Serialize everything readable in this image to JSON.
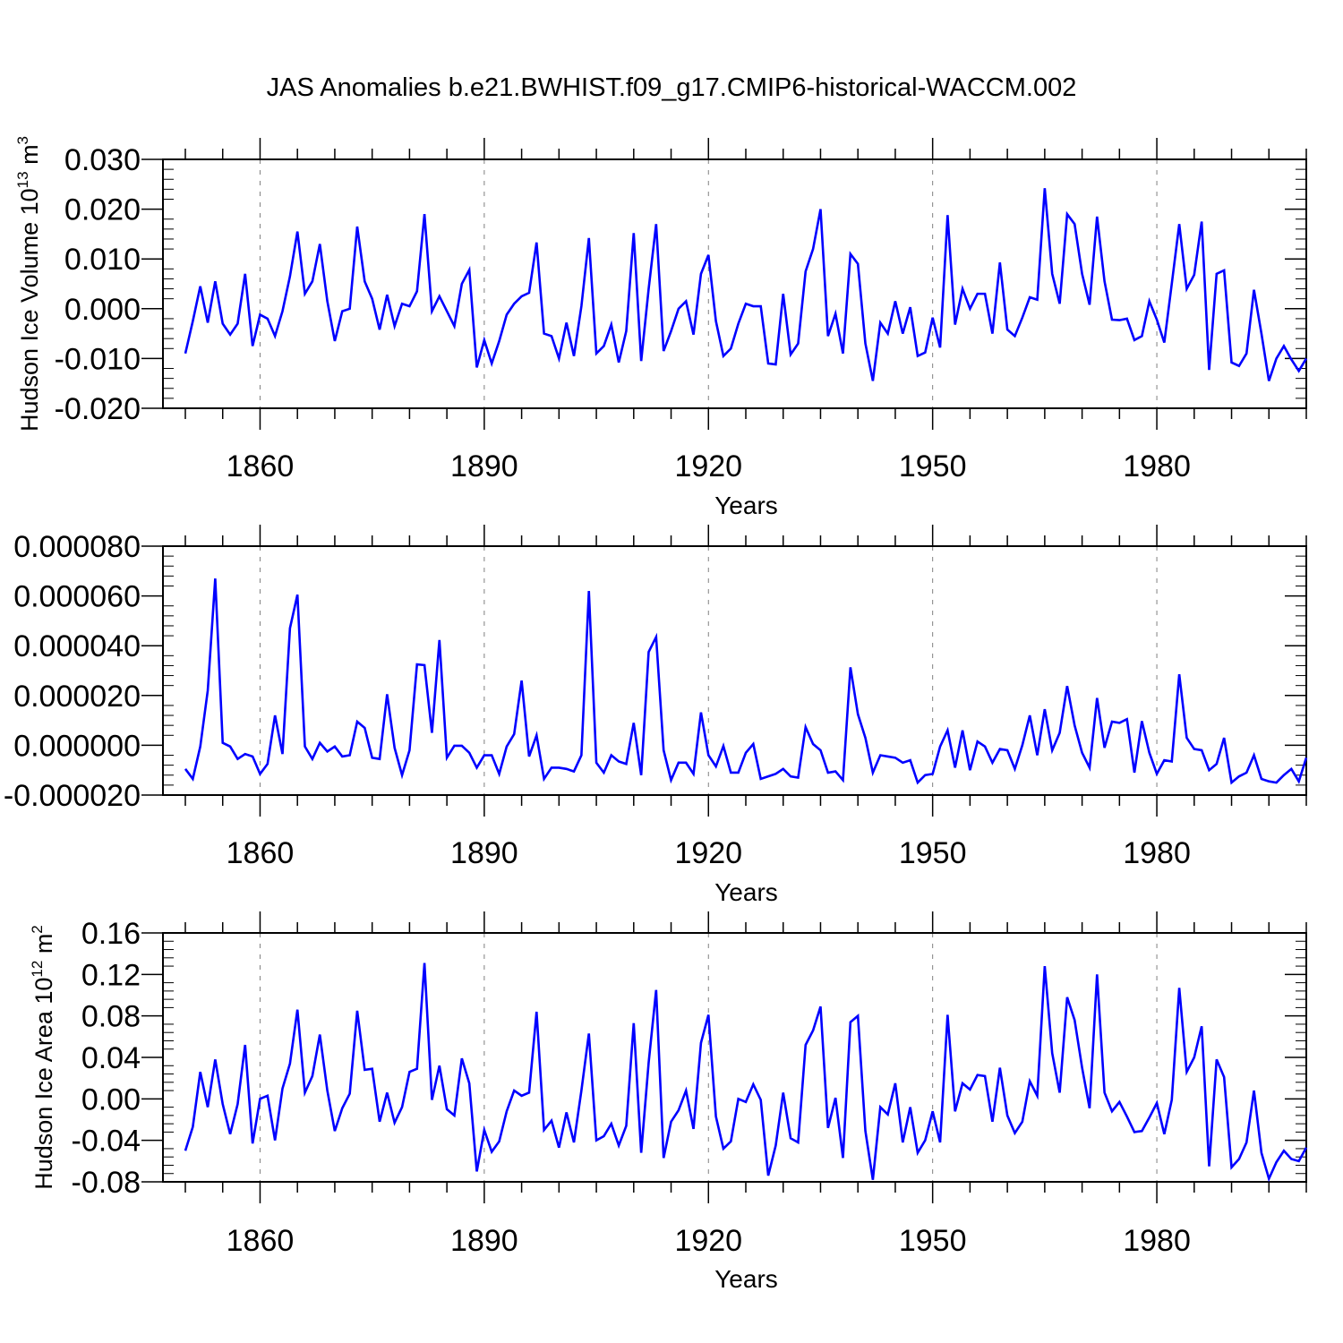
{
  "title": "JAS Anomalies b.e21.BWHIST.f09_g17.CMIP6-historical-WACCM.002",
  "colors": {
    "series": "#0000ff",
    "axes": "#000000",
    "grid": "#808080"
  },
  "chart_data": [
    {
      "type": "line",
      "title": "JAS Anomalies b.e21.BWHIST.f09_g17.CMIP6-historical-WACCM.002",
      "xlabel": "Years",
      "ylabel_text": "Hudson Ice Volume 10",
      "ylabel_sup": "13",
      "ylabel_unit": " m",
      "ylabel_unit_sup": "3",
      "xlim": [
        1850,
        2000
      ],
      "ylim": [
        -0.02,
        0.03
      ],
      "xticks": [
        1860,
        1890,
        1920,
        1950,
        1980
      ],
      "xtick_labels": [
        "1860",
        "1890",
        "1920",
        "1950",
        "1980"
      ],
      "yticks": [
        -0.02,
        -0.01,
        0.0,
        0.01,
        0.02,
        0.03
      ],
      "ytick_labels": [
        "-0.020",
        "-0.010",
        "0.000",
        "0.010",
        "0.020",
        "0.030"
      ],
      "grid": "vertical dashed at major x ticks",
      "x_start": 1850,
      "values": [
        -0.009,
        -0.0025,
        0.0045,
        -0.0028,
        0.0055,
        -0.003,
        -0.0052,
        -0.003,
        0.007,
        -0.0075,
        -0.0012,
        -0.002,
        -0.0055,
        -0.0005,
        0.0065,
        0.0155,
        0.003,
        0.0055,
        0.013,
        0.0015,
        -0.0065,
        -0.0005,
        0.0,
        0.0165,
        0.0055,
        0.002,
        -0.0042,
        0.0028,
        -0.0035,
        0.001,
        0.0005,
        0.0035,
        0.019,
        -0.0005,
        0.0025,
        -0.0005,
        -0.0035,
        0.005,
        0.0078,
        -0.0118,
        -0.0063,
        -0.011,
        -0.0065,
        -0.0012,
        0.001,
        0.0025,
        0.0032,
        0.0133,
        -0.005,
        -0.0055,
        -0.01,
        -0.0028,
        -0.0095,
        0.0005,
        0.0142,
        -0.009,
        -0.0075,
        -0.0032,
        -0.0108,
        -0.0045,
        0.0152,
        -0.0105,
        0.004,
        0.017,
        -0.0085,
        -0.0045,
        0.0,
        0.0015,
        -0.0052,
        0.007,
        0.0108,
        -0.0025,
        -0.0095,
        -0.008,
        -0.003,
        0.001,
        0.0005,
        0.0005,
        -0.011,
        -0.0112,
        0.003,
        -0.0092,
        -0.007,
        0.0075,
        0.012,
        0.02,
        -0.0055,
        -0.001,
        -0.009,
        0.011,
        0.009,
        -0.007,
        -0.0145,
        -0.0028,
        -0.005,
        0.0015,
        -0.005,
        0.0003,
        -0.0095,
        -0.0088,
        -0.0018,
        -0.0078,
        0.0188,
        -0.0032,
        0.004,
        0.0,
        0.003,
        0.003,
        -0.005,
        0.0093,
        -0.0042,
        -0.0055,
        -0.0018,
        0.0023,
        0.0018,
        0.0242,
        0.007,
        0.001,
        0.019,
        0.017,
        0.007,
        0.0008,
        0.0185,
        0.0055,
        -0.0022,
        -0.0023,
        -0.002,
        -0.0063,
        -0.0055,
        0.0015,
        -0.0022,
        -0.0068,
        0.005,
        0.017,
        0.004,
        0.0068,
        0.0175,
        -0.0123,
        0.007,
        0.0077,
        -0.0108,
        -0.0115,
        -0.009,
        0.0038,
        -0.005,
        -0.0145,
        -0.01,
        -0.0075,
        -0.0102,
        -0.0125,
        -0.01
      ]
    },
    {
      "type": "line",
      "xlabel": "Years",
      "xlim": [
        1850,
        2000
      ],
      "ylim": [
        -2e-05,
        8e-05
      ],
      "xticks": [
        1860,
        1890,
        1920,
        1950,
        1980
      ],
      "xtick_labels": [
        "1860",
        "1890",
        "1920",
        "1950",
        "1980"
      ],
      "yticks": [
        -2e-05,
        0.0,
        2e-05,
        4e-05,
        6e-05,
        8e-05
      ],
      "ytick_labels": [
        "-0.000020",
        "0.000000",
        "0.000020",
        "0.000040",
        "0.000060",
        "0.000080"
      ],
      "grid": "vertical dashed at major x ticks",
      "x_start": 1850,
      "values": [
        -9.5e-06,
        -1.35e-05,
        -5e-07,
        2.2e-05,
        6.7e-05,
        1e-06,
        -5e-07,
        -5.5e-06,
        -3.5e-06,
        -4.5e-06,
        -1.15e-05,
        -7.5e-06,
        1.2e-05,
        -3.5e-06,
        4.7e-05,
        6.05e-05,
        -5e-07,
        -5.5e-06,
        1e-06,
        -2.5e-06,
        -5e-07,
        -4.5e-06,
        -4e-06,
        9.5e-06,
        7e-06,
        -5e-06,
        -5.5e-06,
        2.05e-05,
        -1e-06,
        -1.2e-05,
        -2e-06,
        3.25e-05,
        3.22e-05,
        5e-06,
        4.23e-05,
        -5e-06,
        -2e-07,
        -2e-07,
        -3e-06,
        -9e-06,
        -4e-06,
        -4e-06,
        -1.15e-05,
        -5e-07,
        4.5e-06,
        2.6e-05,
        -4.5e-06,
        4e-06,
        -1.35e-05,
        -9e-06,
        -9e-06,
        -9.5e-06,
        -1.05e-05,
        -4e-06,
        6.2e-05,
        -7e-06,
        -1.1e-05,
        -4e-06,
        -6.5e-06,
        -7.5e-06,
        9e-06,
        -1.2e-05,
        3.75e-05,
        4.35e-05,
        -2e-06,
        -1.4e-05,
        -7e-06,
        -7e-06,
        -1.15e-05,
        1.32e-05,
        -4e-06,
        -8.5e-06,
        -3e-07,
        -1.1e-05,
        -1.1e-05,
        -3e-06,
        5e-07,
        -1.35e-05,
        -1.25e-05,
        -1.15e-05,
        -9.5e-06,
        -1.25e-05,
        -1.3e-05,
        7.3e-06,
        5e-07,
        -2e-06,
        -1.1e-05,
        -1.05e-05,
        -1.4e-05,
        3.13e-05,
        1.25e-05,
        3e-06,
        -1.1e-05,
        -4e-06,
        -4.5e-06,
        -5e-06,
        -7e-06,
        -6e-06,
        -1.5e-05,
        -1.2e-05,
        -1.15e-05,
        -5e-07,
        6e-06,
        -9e-06,
        6e-06,
        -1e-05,
        1.5e-06,
        -5e-07,
        -7e-06,
        -1.5e-06,
        -2e-06,
        -9.5e-06,
        0.0,
        1.2e-05,
        -4e-06,
        1.45e-05,
        -2e-06,
        5e-06,
        2.38e-05,
        8e-06,
        -3e-06,
        -9e-06,
        1.9e-05,
        -1e-06,
        9.5e-06,
        9e-06,
        1.05e-05,
        -1.1e-05,
        9.7e-06,
        -3e-06,
        -1.15e-05,
        -6e-06,
        -6.5e-06,
        2.85e-05,
        3e-06,
        -1.5e-06,
        -2e-06,
        -1e-05,
        -7.5e-06,
        3e-06,
        -1.5e-05,
        -1.25e-05,
        -1.1e-05,
        -4e-06,
        -1.35e-05,
        -1.45e-05,
        -1.5e-05,
        -1.2e-05,
        -9.5e-06,
        -1.45e-05,
        -5e-06
      ]
    },
    {
      "type": "line",
      "xlabel": "Years",
      "ylabel_text": "Hudson Ice Area 10",
      "ylabel_sup": "12",
      "ylabel_unit": " m",
      "ylabel_unit_sup": "2",
      "xlim": [
        1850,
        2000
      ],
      "ylim": [
        -0.08,
        0.16
      ],
      "xticks": [
        1860,
        1890,
        1920,
        1950,
        1980
      ],
      "xtick_labels": [
        "1860",
        "1890",
        "1920",
        "1950",
        "1980"
      ],
      "yticks": [
        -0.08,
        -0.04,
        0.0,
        0.04,
        0.08,
        0.12,
        0.16
      ],
      "ytick_labels": [
        "-0.08",
        "-0.04",
        "0.00",
        "0.04",
        "0.08",
        "0.12",
        "0.16"
      ],
      "grid": "vertical dashed at major x ticks",
      "x_start": 1850,
      "values": [
        -0.05,
        -0.027,
        0.026,
        -0.008,
        0.038,
        -0.005,
        -0.034,
        -0.005,
        0.052,
        -0.043,
        0.0,
        0.003,
        -0.04,
        0.01,
        0.034,
        0.086,
        0.006,
        0.022,
        0.062,
        0.008,
        -0.031,
        -0.009,
        0.005,
        0.085,
        0.028,
        0.029,
        -0.022,
        0.006,
        -0.023,
        -0.008,
        0.026,
        0.029,
        0.131,
        -0.001,
        0.032,
        -0.01,
        -0.016,
        0.039,
        0.015,
        -0.07,
        -0.03,
        -0.051,
        -0.041,
        -0.012,
        0.008,
        0.003,
        0.006,
        0.084,
        -0.03,
        -0.021,
        -0.047,
        -0.013,
        -0.042,
        0.008,
        0.063,
        -0.04,
        -0.036,
        -0.024,
        -0.045,
        -0.026,
        0.073,
        -0.052,
        0.035,
        0.105,
        -0.057,
        -0.022,
        -0.011,
        0.008,
        -0.029,
        0.054,
        0.081,
        -0.017,
        -0.048,
        -0.041,
        0.0,
        -0.003,
        0.014,
        -0.001,
        -0.074,
        -0.045,
        0.006,
        -0.038,
        -0.042,
        0.052,
        0.066,
        0.089,
        -0.028,
        0.001,
        -0.057,
        0.074,
        0.08,
        -0.031,
        -0.078,
        -0.008,
        -0.015,
        0.015,
        -0.042,
        -0.008,
        -0.052,
        -0.04,
        -0.012,
        -0.042,
        0.081,
        -0.012,
        0.015,
        0.009,
        0.023,
        0.022,
        -0.022,
        0.03,
        -0.016,
        -0.033,
        -0.022,
        0.017,
        0.003,
        0.128,
        0.044,
        0.006,
        0.098,
        0.076,
        0.03,
        -0.009,
        0.12,
        0.006,
        -0.012,
        -0.003,
        -0.017,
        -0.032,
        -0.031,
        -0.018,
        -0.004,
        -0.034,
        -0.001,
        0.107,
        0.026,
        0.04,
        0.07,
        -0.065,
        0.038,
        0.021,
        -0.066,
        -0.058,
        -0.042,
        0.008,
        -0.052,
        -0.077,
        -0.061,
        -0.05,
        -0.058,
        -0.06,
        -0.047
      ]
    }
  ]
}
